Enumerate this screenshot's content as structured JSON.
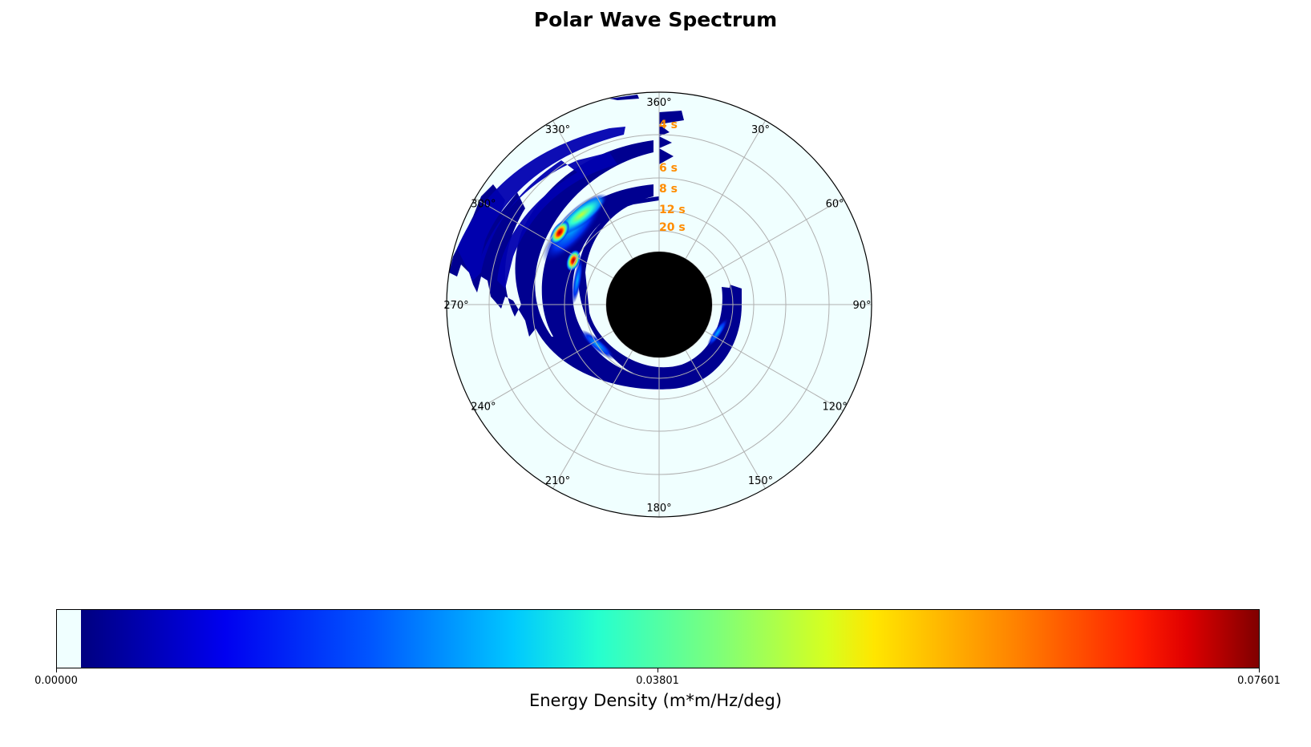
{
  "chart_data": {
    "type": "polar-heatmap",
    "title": "Polar Wave Spectrum",
    "angular_axis": {
      "direction": "clockwise",
      "zero_location": "N",
      "tick_labels": [
        "360°",
        "30°",
        "60°",
        "90°",
        "120°",
        "150°",
        "180°",
        "210°",
        "240°",
        "270°",
        "300°",
        "330°"
      ],
      "tick_degrees": [
        0,
        30,
        60,
        90,
        120,
        150,
        180,
        210,
        240,
        270,
        300,
        330
      ]
    },
    "radial_axis": {
      "period_labels": [
        "4 s",
        "6 s",
        "8 s",
        "12 s",
        "20 s"
      ],
      "label_color": "#ff8c00",
      "grid": true
    },
    "colorbar": {
      "label": "Energy Density (m*m/Hz/deg)",
      "tick_labels": [
        "0.00000",
        "0.03801",
        "0.07601"
      ],
      "ticks": [
        0.0,
        0.03801,
        0.07601
      ],
      "range": [
        0.0,
        0.07601
      ],
      "colormap": "jet",
      "orientation": "horizontal",
      "placement": "bottom"
    },
    "spectrum_peaks": [
      {
        "direction_deg": 303,
        "period_label": "8 s",
        "energy": 0.076
      },
      {
        "direction_deg": 297,
        "period_label": "12 s",
        "energy": 0.07
      },
      {
        "direction_deg": 315,
        "period_label": "8 s",
        "energy": 0.038
      }
    ],
    "background_color": "#f0ffff",
    "center_mask_color": "#000000"
  }
}
